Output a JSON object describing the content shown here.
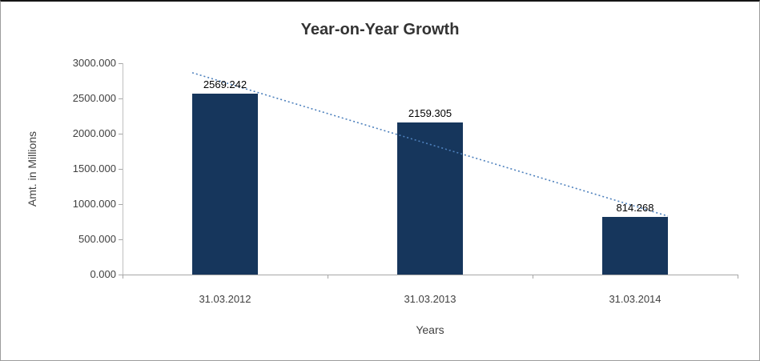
{
  "chart_data": {
    "type": "bar",
    "title": "Year-on-Year Growth",
    "categories": [
      "31.03.2012",
      "31.03.2013",
      "31.03.2014"
    ],
    "values": [
      2569.242,
      2159.305,
      814.268
    ],
    "data_labels": [
      "2569.242",
      "2159.305",
      "814.268"
    ],
    "xlabel": "Years",
    "ylabel": "Amt. in Millions",
    "ylim": [
      0,
      3000
    ],
    "ytick_step": 500,
    "ytick_labels": [
      "0.000",
      "500.000",
      "1000.000",
      "1500.000",
      "2000.000",
      "2500.000",
      "3000.000"
    ],
    "bar_color": "#16365C",
    "trendline": {
      "type": "linear",
      "style": "dotted",
      "color": "#4E81BD"
    },
    "grid": false,
    "legend": false,
    "axis_text_color": "#404040",
    "data_label_color": "#000000"
  }
}
